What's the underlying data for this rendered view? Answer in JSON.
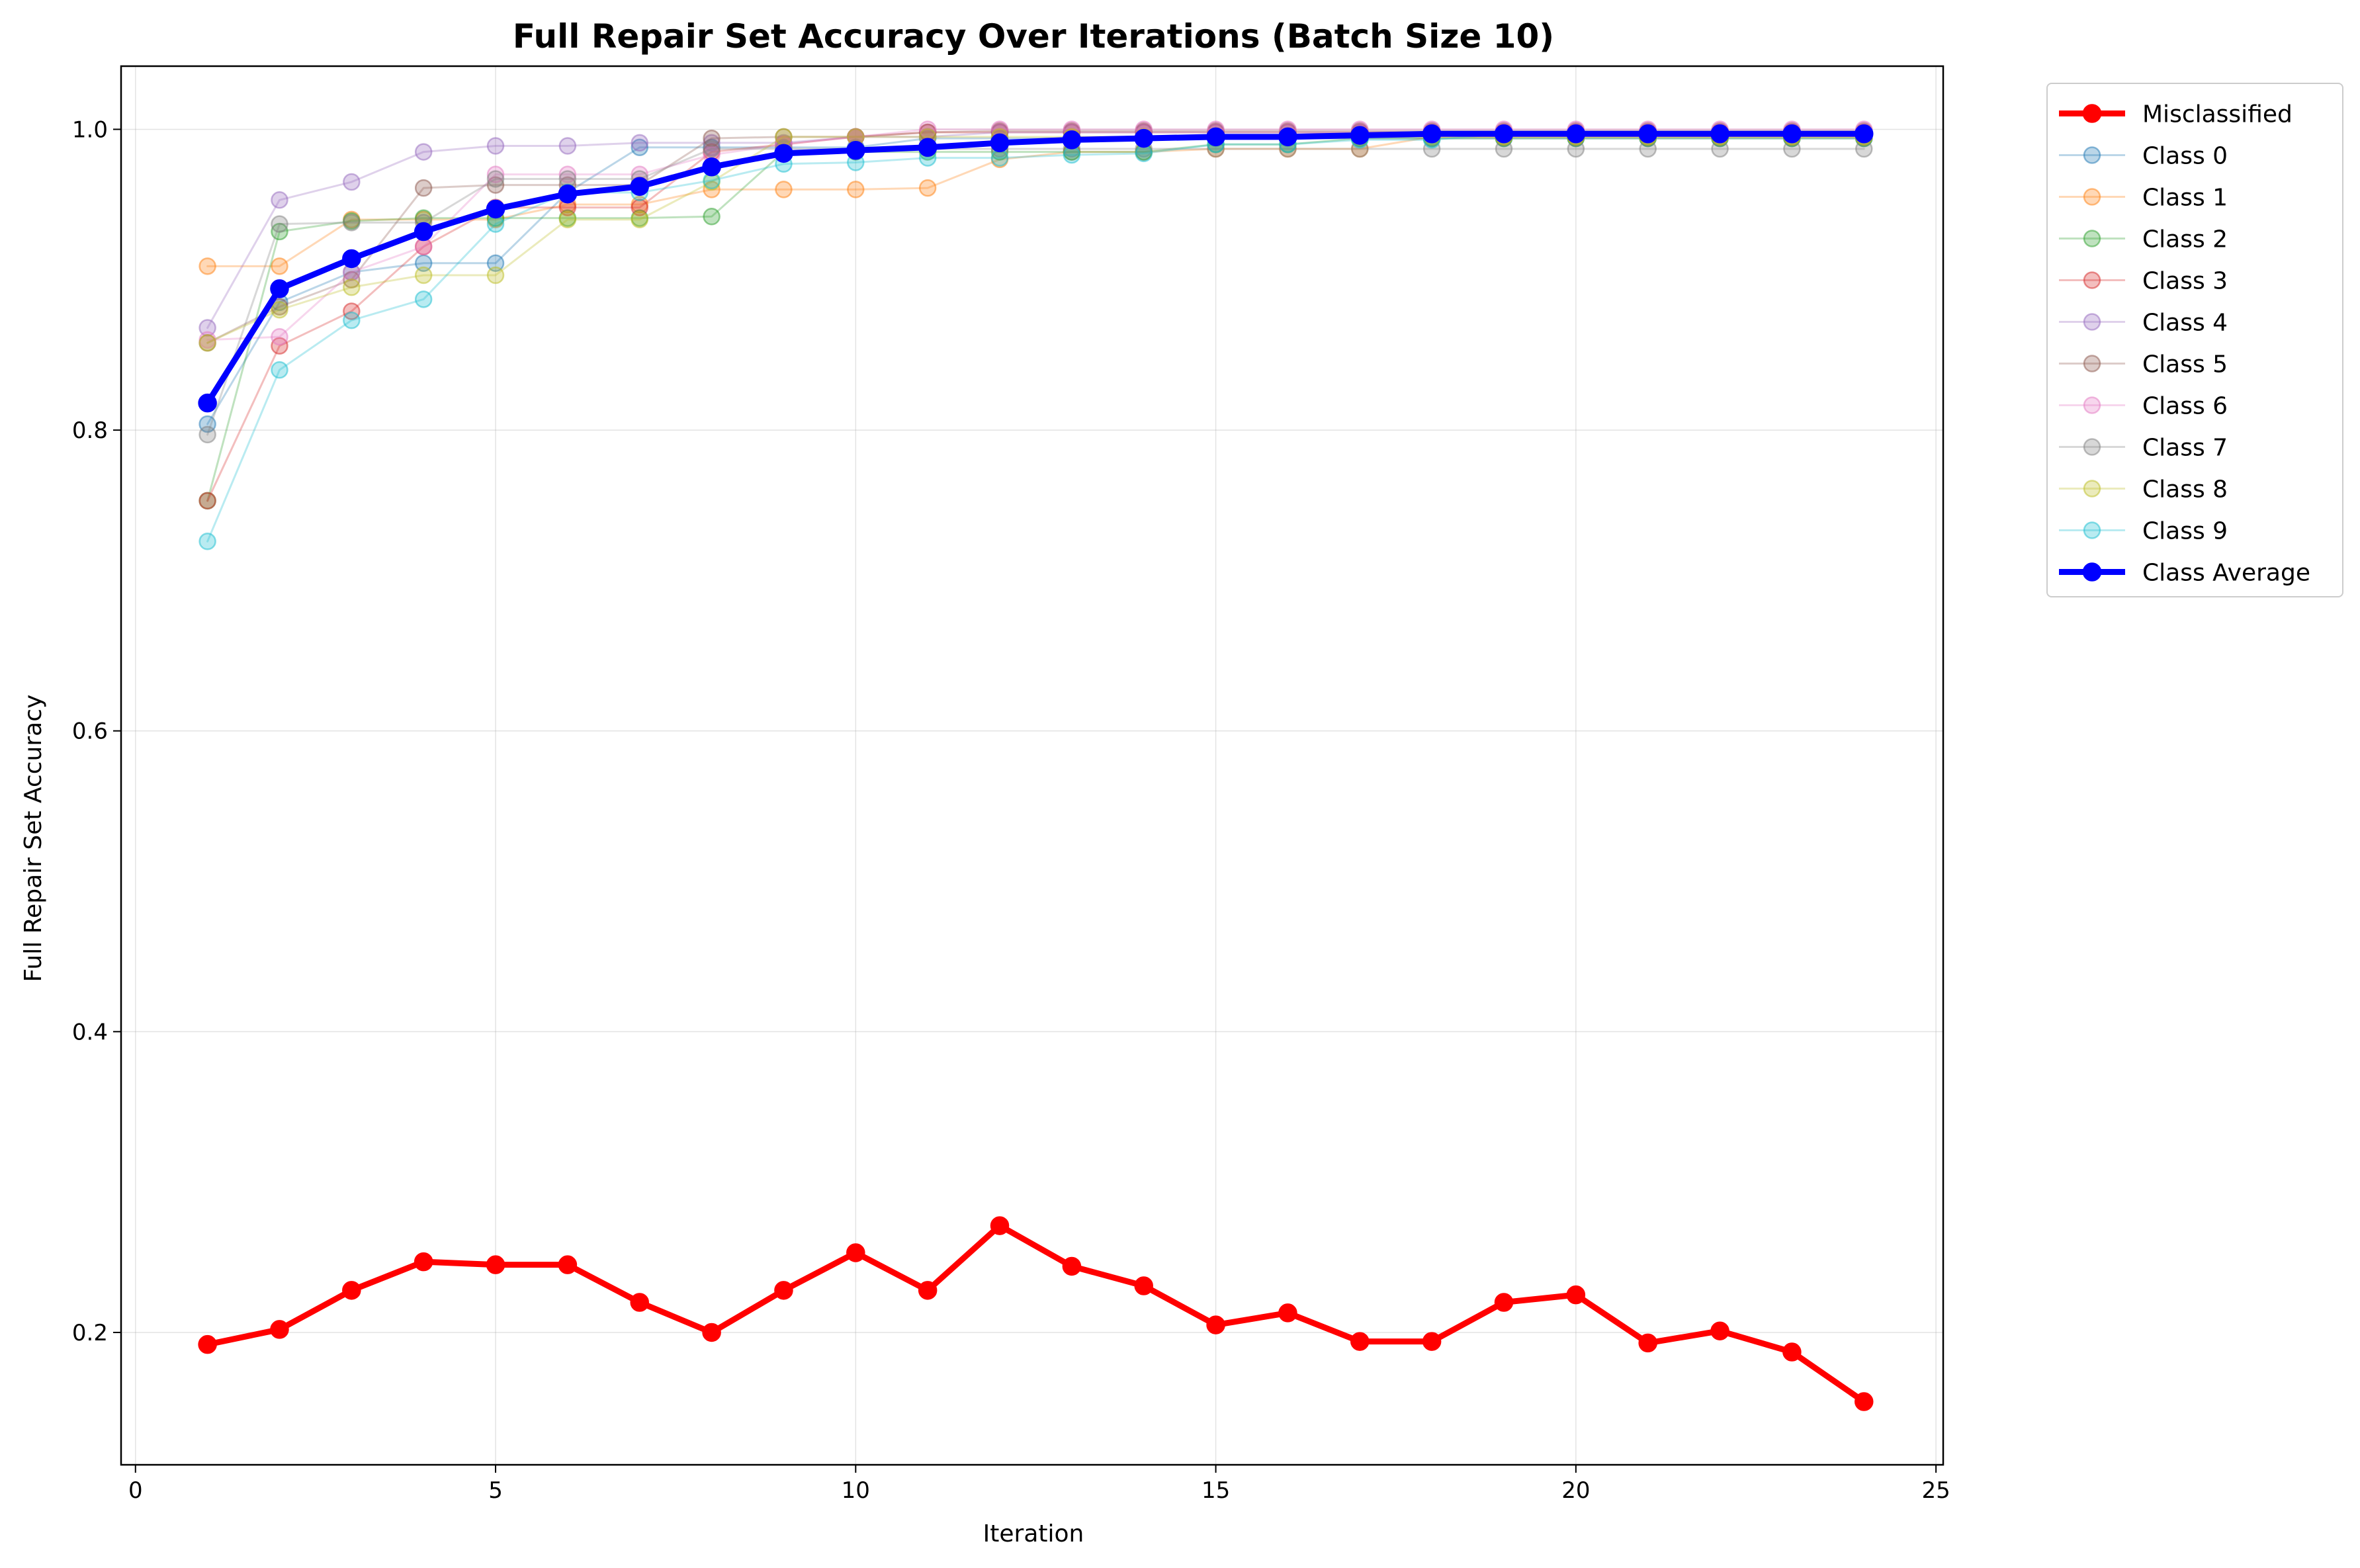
{
  "chart_data": {
    "type": "line",
    "title": "Full Repair Set Accuracy Over Iterations (Batch Size 10)",
    "xlabel": "Iteration",
    "ylabel": "Full Repair Set Accuracy",
    "xlim": [
      -0.2,
      25.1
    ],
    "ylim": [
      0.112,
      1.042
    ],
    "xticks": [
      0,
      5,
      10,
      15,
      20,
      25
    ],
    "yticks": [
      0.2,
      0.4,
      0.6,
      0.8,
      1.0
    ],
    "ytick_labels": [
      "0.2",
      "0.4",
      "0.6",
      "0.8",
      "1.0"
    ],
    "grid": true,
    "legend_position": "outside-top-right",
    "x": [
      1,
      2,
      3,
      4,
      5,
      6,
      7,
      8,
      9,
      10,
      11,
      12,
      13,
      14,
      15,
      16,
      17,
      18,
      19,
      20,
      21,
      22,
      23,
      24
    ],
    "series": [
      {
        "name": "Misclassified",
        "color": "#ff0000",
        "emphasis": true,
        "values": [
          0.192,
          0.202,
          0.228,
          0.247,
          0.245,
          0.245,
          0.22,
          0.2,
          0.228,
          0.253,
          0.228,
          0.271,
          0.244,
          0.231,
          0.205,
          0.213,
          0.194,
          0.194,
          0.22,
          0.225,
          0.193,
          0.201,
          0.187,
          0.154
        ]
      },
      {
        "name": "Class 0",
        "color": "#1f77b4",
        "values": [
          0.804,
          0.885,
          0.905,
          0.911,
          0.911,
          0.958,
          0.988,
          0.988,
          0.988,
          0.988,
          0.994,
          0.994,
          0.994,
          0.994,
          0.994,
          0.994,
          0.994,
          0.994,
          0.994,
          0.994,
          0.994,
          0.994,
          0.994,
          0.994
        ]
      },
      {
        "name": "Class 1",
        "color": "#ff7f0e",
        "values": [
          0.909,
          0.909,
          0.94,
          0.94,
          0.94,
          0.95,
          0.95,
          0.96,
          0.96,
          0.96,
          0.961,
          0.98,
          0.985,
          0.985,
          0.987,
          0.987,
          0.987,
          0.995,
          0.995,
          0.995,
          0.995,
          0.995,
          0.995,
          0.995
        ]
      },
      {
        "name": "Class 2",
        "color": "#2ca02c",
        "values": [
          0.753,
          0.932,
          0.939,
          0.941,
          0.941,
          0.941,
          0.941,
          0.942,
          0.985,
          0.985,
          0.985,
          0.985,
          0.985,
          0.985,
          0.99,
          0.99,
          0.994,
          0.994,
          0.994,
          0.994,
          0.994,
          0.994,
          0.994,
          0.994
        ]
      },
      {
        "name": "Class 3",
        "color": "#d62728",
        "values": [
          0.753,
          0.856,
          0.879,
          0.922,
          0.948,
          0.948,
          0.948,
          0.985,
          0.99,
          0.995,
          0.998,
          0.998,
          0.998,
          0.998,
          0.998,
          0.998,
          0.998,
          0.998,
          0.998,
          0.998,
          0.998,
          0.998,
          0.998,
          0.998
        ]
      },
      {
        "name": "Class 4",
        "color": "#9467bd",
        "values": [
          0.868,
          0.953,
          0.965,
          0.985,
          0.989,
          0.989,
          0.991,
          0.991,
          0.991,
          0.995,
          0.995,
          0.998,
          0.998,
          0.998,
          0.998,
          0.998,
          0.998,
          0.998,
          0.998,
          0.998,
          0.998,
          0.998,
          0.998,
          0.998
        ]
      },
      {
        "name": "Class 5",
        "color": "#8c564b",
        "values": [
          0.858,
          0.882,
          0.9,
          0.961,
          0.963,
          0.963,
          0.963,
          0.994,
          0.995,
          0.995,
          0.998,
          0.999,
          0.999,
          0.999,
          0.999,
          0.999,
          0.999,
          0.999,
          0.999,
          0.999,
          0.999,
          0.999,
          0.999,
          0.999
        ]
      },
      {
        "name": "Class 6",
        "color": "#e377c2",
        "values": [
          0.86,
          0.862,
          0.905,
          0.922,
          0.97,
          0.97,
          0.97,
          0.983,
          0.99,
          0.995,
          1.0,
          1.0,
          1.0,
          1.0,
          1.0,
          1.0,
          1.0,
          1.0,
          1.0,
          1.0,
          1.0,
          1.0,
          1.0,
          1.0
        ]
      },
      {
        "name": "Class 7",
        "color": "#7f7f7f",
        "values": [
          0.797,
          0.937,
          0.938,
          0.938,
          0.967,
          0.967,
          0.967,
          0.987,
          0.987,
          0.987,
          0.987,
          0.987,
          0.987,
          0.987,
          0.987,
          0.987,
          0.987,
          0.987,
          0.987,
          0.987,
          0.987,
          0.987,
          0.987,
          0.987
        ]
      },
      {
        "name": "Class 8",
        "color": "#bcbd22",
        "values": [
          0.858,
          0.88,
          0.895,
          0.903,
          0.903,
          0.94,
          0.94,
          0.965,
          0.995,
          0.995,
          0.995,
          0.995,
          0.995,
          0.995,
          0.995,
          0.995,
          0.995,
          0.995,
          0.995,
          0.995,
          0.995,
          0.995,
          0.995,
          0.995
        ]
      },
      {
        "name": "Class 9",
        "color": "#17becf",
        "values": [
          0.726,
          0.84,
          0.873,
          0.887,
          0.937,
          0.958,
          0.958,
          0.966,
          0.977,
          0.978,
          0.981,
          0.981,
          0.983,
          0.984,
          0.99,
          0.99,
          0.993,
          0.993,
          0.997,
          0.997,
          0.997,
          0.997,
          0.997,
          0.997
        ]
      },
      {
        "name": "Class Average",
        "color": "#0000ff",
        "emphasis": true,
        "values": [
          0.818,
          0.894,
          0.914,
          0.932,
          0.947,
          0.957,
          0.962,
          0.975,
          0.984,
          0.986,
          0.988,
          0.991,
          0.993,
          0.994,
          0.995,
          0.995,
          0.996,
          0.997,
          0.997,
          0.997,
          0.997,
          0.997,
          0.997,
          0.997
        ]
      }
    ]
  }
}
